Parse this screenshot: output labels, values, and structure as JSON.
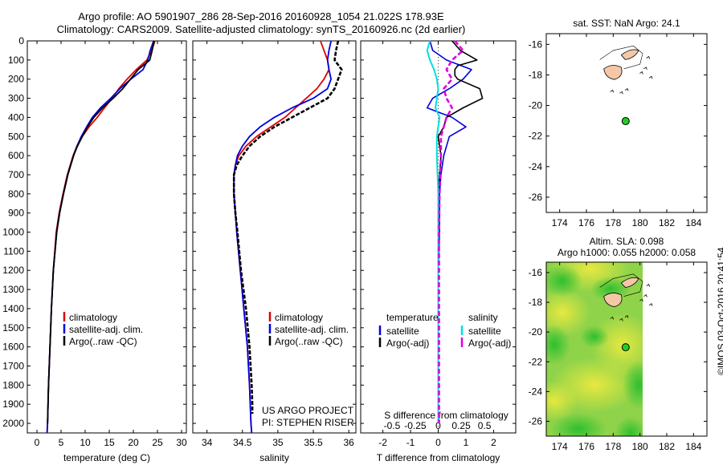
{
  "header": {
    "line1": "Argo profile: AO 5901907_286 28-Sep-2016 20160928_1054 21.022S 178.93E",
    "line2": "Climatology: CARS2009. Satellite-adjusted climatology: synTS_20160926.nc (2d earlier)"
  },
  "depth_ticks": [
    0,
    100,
    200,
    300,
    400,
    500,
    600,
    700,
    800,
    900,
    1000,
    1100,
    1200,
    1300,
    1400,
    1500,
    1600,
    1700,
    1800,
    1900,
    2000
  ],
  "colors": {
    "climatology": "#dd0000",
    "satellite": "#0000dd",
    "argo": "#000000",
    "sat_salinity": "#00e0e0",
    "argo_salinity": "#e000e0"
  },
  "chart_data": [
    {
      "type": "line",
      "xlabel": "temperature (deg C)",
      "xlim": [
        -2,
        31
      ],
      "ylim": [
        2050,
        0
      ],
      "xticks": [
        0,
        5,
        10,
        15,
        20,
        25,
        30
      ],
      "legend": [
        "climatology",
        "satellite-adj. clim.",
        "Argo(..raw -QC)"
      ],
      "series": [
        {
          "name": "climatology",
          "depth": [
            0,
            50,
            100,
            150,
            200,
            250,
            300,
            350,
            400,
            450,
            500,
            550,
            600,
            700,
            800,
            900,
            1000,
            1200,
            1400,
            1600,
            1800,
            2000,
            2050
          ],
          "values": [
            24.5,
            23.8,
            22.8,
            20.6,
            18.7,
            17.0,
            15.6,
            14.0,
            12.5,
            10.8,
            9.4,
            8.3,
            7.5,
            6.3,
            5.4,
            4.6,
            4.0,
            3.4,
            3.0,
            2.7,
            2.4,
            2.2,
            2.1
          ]
        },
        {
          "name": "satellite-adj. clim.",
          "depth": [
            0,
            50,
            100,
            150,
            200,
            250,
            300,
            350,
            400,
            450,
            500,
            550,
            600,
            700,
            800,
            900,
            1000,
            1200,
            1400,
            1600,
            1800,
            2000,
            2050
          ],
          "values": [
            24.2,
            23.5,
            23.0,
            22.0,
            19.5,
            17.2,
            15.3,
            13.2,
            11.5,
            10.3,
            9.2,
            8.3,
            7.6,
            6.4,
            5.5,
            4.7,
            4.1,
            3.4,
            3.0,
            2.7,
            2.4,
            2.2,
            2.1
          ]
        },
        {
          "name": "Argo(..raw -QC)",
          "depth": [
            0,
            50,
            100,
            150,
            200,
            250,
            300,
            350,
            400,
            450,
            500,
            550,
            600,
            700,
            800,
            900,
            1000,
            1200,
            1400,
            1600,
            1800,
            2000
          ],
          "values": [
            24.3,
            23.9,
            23.4,
            21.0,
            19.4,
            17.8,
            15.8,
            13.6,
            11.8,
            10.5,
            9.4,
            8.4,
            7.6,
            6.4,
            5.5,
            4.7,
            4.1,
            3.4,
            3.0,
            2.7,
            2.4,
            2.2
          ]
        }
      ]
    },
    {
      "type": "line",
      "xlabel": "salinity",
      "xlim": [
        33.8,
        36.1
      ],
      "ylim": [
        2050,
        0
      ],
      "xticks": [
        34,
        34.5,
        35,
        35.5,
        36
      ],
      "legend": [
        "climatology",
        "satellite-adj. clim.",
        "Argo(..raw -QC)"
      ],
      "annotation": [
        "US ARGO PROJECT",
        "PI: STEPHEN RISER"
      ],
      "series": [
        {
          "name": "climatology",
          "depth": [
            0,
            50,
            100,
            150,
            200,
            250,
            300,
            350,
            400,
            450,
            500,
            550,
            600,
            650,
            700,
            800,
            900,
            1000,
            1200,
            1400,
            1600,
            1800,
            2000,
            2050
          ],
          "values": [
            35.6,
            35.65,
            35.7,
            35.72,
            35.65,
            35.55,
            35.4,
            35.25,
            35.1,
            34.9,
            34.7,
            34.55,
            34.45,
            34.4,
            34.38,
            34.38,
            34.4,
            34.42,
            34.47,
            34.52,
            34.57,
            34.6,
            34.62,
            34.63
          ]
        },
        {
          "name": "satellite-adj. clim.",
          "depth": [
            0,
            50,
            100,
            150,
            200,
            250,
            300,
            350,
            400,
            450,
            500,
            550,
            600,
            650,
            700,
            800,
            900,
            1000,
            1200,
            1400,
            1600,
            1800,
            2000,
            2050
          ],
          "values": [
            35.75,
            35.72,
            35.7,
            35.72,
            35.75,
            35.7,
            35.5,
            35.2,
            34.95,
            34.75,
            34.6,
            34.5,
            34.43,
            34.4,
            34.38,
            34.38,
            34.4,
            34.42,
            34.47,
            34.52,
            34.57,
            34.6,
            34.62,
            34.63
          ]
        },
        {
          "name": "Argo(..raw -QC)",
          "depth": [
            0,
            50,
            100,
            150,
            200,
            250,
            300,
            350,
            400,
            450,
            500,
            550,
            600,
            650,
            700,
            800,
            900,
            1000,
            1200,
            1400,
            1600,
            1800,
            1900,
            1950
          ],
          "values": [
            35.85,
            35.82,
            35.8,
            35.9,
            35.85,
            35.8,
            35.7,
            35.45,
            35.2,
            34.95,
            34.75,
            34.6,
            34.5,
            34.42,
            34.38,
            34.38,
            34.4,
            34.43,
            34.48,
            34.55,
            34.6,
            34.63,
            34.64,
            34.64
          ]
        }
      ]
    },
    {
      "type": "line",
      "xlabel": "T difference from climatology",
      "xlabel_top": "S difference from climatology",
      "xlim": [
        -2.8,
        2.8
      ],
      "ylim": [
        2050,
        0
      ],
      "xticks": [
        -2,
        -1,
        0,
        1,
        2
      ],
      "xtick_labels": [
        "-2",
        "-1",
        "0",
        "1",
        "2"
      ],
      "top_ticks_pos": [
        -1.67,
        -0.83,
        0,
        0.83,
        1.67
      ],
      "top_tick_labels": [
        "-0.5",
        "-0.25",
        "0",
        "0.25",
        "0.5"
      ],
      "legend": {
        "temperature": [
          "satellite",
          "Argo(-adj)"
        ],
        "salinity": [
          "satellite",
          "Argo(-adj)"
        ]
      },
      "series": [
        {
          "name": "temperature satellite",
          "depth": [
            0,
            50,
            100,
            150,
            200,
            250,
            300,
            350,
            400,
            450,
            500,
            600,
            700,
            800,
            1000,
            1200,
            1400,
            1600,
            1800,
            2000
          ],
          "values": [
            -0.3,
            -0.2,
            0.3,
            1.2,
            0.9,
            0.4,
            -0.2,
            -0.4,
            0.5,
            1.0,
            0.4,
            0.2,
            0.1,
            0.05,
            0.05,
            0.0,
            0.0,
            0.0,
            0.0,
            0.0
          ]
        },
        {
          "name": "temperature Argo(-adj)",
          "depth": [
            0,
            50,
            100,
            130,
            150,
            180,
            200,
            250,
            300,
            350,
            400,
            450,
            500,
            600,
            700,
            800,
            1000,
            1200,
            1400,
            1600,
            1800,
            2000
          ],
          "values": [
            0.5,
            0.8,
            1.4,
            0.7,
            0.6,
            0.6,
            0.7,
            1.5,
            1.6,
            0.9,
            0.3,
            0.2,
            0.0,
            0.1,
            0.05,
            0.0,
            0.0,
            0.0,
            0.0,
            0.0,
            0.0,
            0.0
          ]
        },
        {
          "name": "salinity satellite",
          "depth": [
            0,
            50,
            100,
            150,
            200,
            250,
            300,
            350,
            400,
            450,
            500,
            600,
            800,
            1000,
            1200,
            1400,
            1600,
            1800,
            2000
          ],
          "values": [
            -0.3,
            -0.4,
            -0.3,
            -0.15,
            -0.05,
            0.0,
            -0.05,
            -0.1,
            0.05,
            0.0,
            -0.05,
            -0.05,
            0.0,
            0.0,
            0.0,
            0.0,
            0.0,
            0.0,
            0.0
          ]
        },
        {
          "name": "salinity Argo(-adj)",
          "depth": [
            0,
            50,
            100,
            150,
            200,
            250,
            300,
            350,
            400,
            450,
            500,
            600,
            800,
            1000,
            1200,
            1400,
            1600,
            1800,
            2000
          ],
          "values": [
            0.6,
            0.9,
            0.5,
            0.3,
            0.5,
            0.2,
            0.3,
            0.5,
            0.3,
            0.2,
            0.1,
            0.1,
            0.05,
            0.03,
            0.03,
            0.03,
            0.03,
            0.03,
            0.03
          ]
        }
      ]
    }
  ],
  "map_top": {
    "title": "sat. SST: NaN Argo: 24.1",
    "xticks": [
      174,
      176,
      178,
      180,
      182,
      184
    ],
    "yticks": [
      -16,
      -18,
      -20,
      -22,
      -24,
      -26
    ],
    "float_position": {
      "lon": 178.93,
      "lat": -21.022
    }
  },
  "map_bottom": {
    "title1": "Altim. SLA: 0.098",
    "title2": "Argo h1000: 0.055 h2000: 0.058",
    "xticks": [
      174,
      176,
      178,
      180,
      182,
      184
    ],
    "yticks": [
      -16,
      -18,
      -20,
      -22,
      -24,
      -26
    ],
    "float_position": {
      "lon": 178.93,
      "lat": -21.022
    }
  },
  "credit": "©IMOS 03-Oct-2016 20:41:54"
}
